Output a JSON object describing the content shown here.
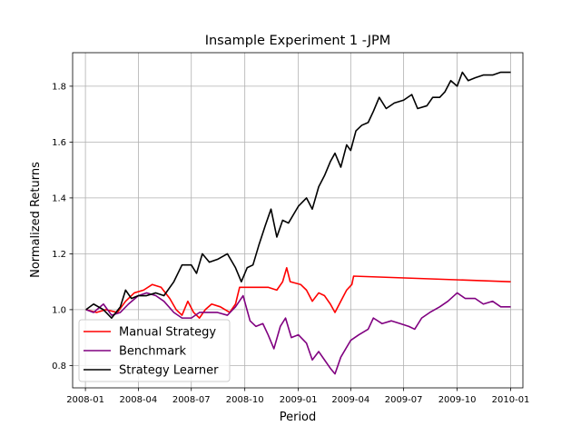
{
  "chart_data": {
    "type": "line",
    "title": "Insample Experiment 1 -JPM",
    "xlabel": "Period",
    "ylabel": "Normalized Returns",
    "xlim": [
      "2007-12-10",
      "2010-01-22"
    ],
    "ylim": [
      0.72,
      1.92
    ],
    "x_ticks": [
      "2008-01-01",
      "2008-04-01",
      "2008-07-01",
      "2008-10-01",
      "2009-01-01",
      "2009-04-01",
      "2009-07-01",
      "2009-10-01",
      "2010-01-01"
    ],
    "x_tick_labels": [
      "2008-01",
      "2008-04",
      "2008-07",
      "2008-10",
      "2009-01",
      "2009-04",
      "2009-07",
      "2009-10",
      "2010-01"
    ],
    "y_ticks": [
      0.8,
      1.0,
      1.2,
      1.4,
      1.6,
      1.8
    ],
    "y_tick_labels": [
      "0.8",
      "1.0",
      "1.2",
      "1.4",
      "1.6",
      "1.8"
    ],
    "grid": true,
    "legend_position": "lower-left",
    "series": [
      {
        "name": "Manual Strategy",
        "color": "#ff0000",
        "points": [
          [
            "2008-01-02",
            1.0
          ],
          [
            "2008-01-20",
            0.99
          ],
          [
            "2008-02-05",
            1.0
          ],
          [
            "2008-02-25",
            0.99
          ],
          [
            "2008-03-10",
            1.03
          ],
          [
            "2008-03-25",
            1.06
          ],
          [
            "2008-04-10",
            1.07
          ],
          [
            "2008-04-25",
            1.09
          ],
          [
            "2008-05-10",
            1.08
          ],
          [
            "2008-05-25",
            1.04
          ],
          [
            "2008-06-05",
            1.0
          ],
          [
            "2008-06-15",
            0.98
          ],
          [
            "2008-06-25",
            1.03
          ],
          [
            "2008-07-05",
            0.99
          ],
          [
            "2008-07-15",
            0.97
          ],
          [
            "2008-07-25",
            1.0
          ],
          [
            "2008-08-05",
            1.02
          ],
          [
            "2008-08-20",
            1.01
          ],
          [
            "2008-09-05",
            0.99
          ],
          [
            "2008-09-15",
            1.02
          ],
          [
            "2008-09-22",
            1.08
          ],
          [
            "2008-10-10",
            1.08
          ],
          [
            "2008-11-10",
            1.08
          ],
          [
            "2008-11-25",
            1.07
          ],
          [
            "2008-12-05",
            1.1
          ],
          [
            "2008-12-12",
            1.15
          ],
          [
            "2008-12-18",
            1.1
          ],
          [
            "2009-01-05",
            1.09
          ],
          [
            "2009-01-15",
            1.07
          ],
          [
            "2009-01-25",
            1.03
          ],
          [
            "2009-02-05",
            1.06
          ],
          [
            "2009-02-15",
            1.05
          ],
          [
            "2009-02-25",
            1.02
          ],
          [
            "2009-03-05",
            0.99
          ],
          [
            "2009-03-15",
            1.03
          ],
          [
            "2009-03-25",
            1.07
          ],
          [
            "2009-04-03",
            1.09
          ],
          [
            "2009-04-06",
            1.12
          ],
          [
            "2010-01-01",
            1.1
          ]
        ]
      },
      {
        "name": "Benchmark",
        "color": "#800080",
        "points": [
          [
            "2008-01-02",
            1.0
          ],
          [
            "2008-01-15",
            0.99
          ],
          [
            "2008-02-01",
            1.02
          ],
          [
            "2008-02-15",
            0.98
          ],
          [
            "2008-03-01",
            0.99
          ],
          [
            "2008-03-15",
            1.02
          ],
          [
            "2008-04-01",
            1.05
          ],
          [
            "2008-04-15",
            1.06
          ],
          [
            "2008-05-01",
            1.05
          ],
          [
            "2008-05-15",
            1.03
          ],
          [
            "2008-06-01",
            0.99
          ],
          [
            "2008-06-15",
            0.97
          ],
          [
            "2008-07-01",
            0.97
          ],
          [
            "2008-07-15",
            0.99
          ],
          [
            "2008-08-01",
            0.99
          ],
          [
            "2008-08-15",
            0.99
          ],
          [
            "2008-09-01",
            0.98
          ],
          [
            "2008-09-15",
            1.01
          ],
          [
            "2008-09-28",
            1.05
          ],
          [
            "2008-10-10",
            0.96
          ],
          [
            "2008-10-20",
            0.94
          ],
          [
            "2008-11-01",
            0.95
          ],
          [
            "2008-11-10",
            0.91
          ],
          [
            "2008-11-20",
            0.86
          ],
          [
            "2008-12-01",
            0.94
          ],
          [
            "2008-12-10",
            0.97
          ],
          [
            "2008-12-20",
            0.9
          ],
          [
            "2009-01-01",
            0.91
          ],
          [
            "2009-01-15",
            0.88
          ],
          [
            "2009-01-25",
            0.82
          ],
          [
            "2009-02-05",
            0.85
          ],
          [
            "2009-02-15",
            0.82
          ],
          [
            "2009-02-25",
            0.79
          ],
          [
            "2009-03-05",
            0.77
          ],
          [
            "2009-03-15",
            0.83
          ],
          [
            "2009-04-01",
            0.89
          ],
          [
            "2009-04-15",
            0.91
          ],
          [
            "2009-05-01",
            0.93
          ],
          [
            "2009-05-10",
            0.97
          ],
          [
            "2009-05-25",
            0.95
          ],
          [
            "2009-06-10",
            0.96
          ],
          [
            "2009-06-25",
            0.95
          ],
          [
            "2009-07-10",
            0.94
          ],
          [
            "2009-07-20",
            0.93
          ],
          [
            "2009-08-01",
            0.97
          ],
          [
            "2009-08-15",
            0.99
          ],
          [
            "2009-09-01",
            1.01
          ],
          [
            "2009-09-15",
            1.03
          ],
          [
            "2009-10-01",
            1.06
          ],
          [
            "2009-10-15",
            1.04
          ],
          [
            "2009-11-01",
            1.04
          ],
          [
            "2009-11-15",
            1.02
          ],
          [
            "2009-12-01",
            1.03
          ],
          [
            "2009-12-15",
            1.01
          ],
          [
            "2010-01-01",
            1.01
          ]
        ]
      },
      {
        "name": "Strategy Learner",
        "color": "#000000",
        "points": [
          [
            "2008-01-02",
            1.0
          ],
          [
            "2008-01-15",
            1.02
          ],
          [
            "2008-02-01",
            1.0
          ],
          [
            "2008-02-15",
            0.97
          ],
          [
            "2008-03-01",
            1.01
          ],
          [
            "2008-03-10",
            1.07
          ],
          [
            "2008-03-20",
            1.04
          ],
          [
            "2008-04-01",
            1.05
          ],
          [
            "2008-04-15",
            1.05
          ],
          [
            "2008-05-01",
            1.06
          ],
          [
            "2008-05-15",
            1.05
          ],
          [
            "2008-06-01",
            1.1
          ],
          [
            "2008-06-15",
            1.16
          ],
          [
            "2008-07-01",
            1.16
          ],
          [
            "2008-07-10",
            1.13
          ],
          [
            "2008-07-20",
            1.2
          ],
          [
            "2008-08-01",
            1.17
          ],
          [
            "2008-08-15",
            1.18
          ],
          [
            "2008-09-01",
            1.2
          ],
          [
            "2008-09-15",
            1.15
          ],
          [
            "2008-09-25",
            1.1
          ],
          [
            "2008-10-05",
            1.15
          ],
          [
            "2008-10-15",
            1.16
          ],
          [
            "2008-10-25",
            1.23
          ],
          [
            "2008-11-05",
            1.3
          ],
          [
            "2008-11-15",
            1.36
          ],
          [
            "2008-11-25",
            1.26
          ],
          [
            "2008-12-05",
            1.32
          ],
          [
            "2008-12-15",
            1.31
          ],
          [
            "2009-01-01",
            1.37
          ],
          [
            "2009-01-15",
            1.4
          ],
          [
            "2009-01-25",
            1.36
          ],
          [
            "2009-02-05",
            1.44
          ],
          [
            "2009-02-15",
            1.48
          ],
          [
            "2009-02-25",
            1.53
          ],
          [
            "2009-03-05",
            1.56
          ],
          [
            "2009-03-15",
            1.51
          ],
          [
            "2009-03-25",
            1.59
          ],
          [
            "2009-04-01",
            1.57
          ],
          [
            "2009-04-10",
            1.64
          ],
          [
            "2009-04-20",
            1.66
          ],
          [
            "2009-05-01",
            1.67
          ],
          [
            "2009-05-10",
            1.71
          ],
          [
            "2009-05-20",
            1.76
          ],
          [
            "2009-06-01",
            1.72
          ],
          [
            "2009-06-15",
            1.74
          ],
          [
            "2009-07-01",
            1.75
          ],
          [
            "2009-07-15",
            1.77
          ],
          [
            "2009-07-25",
            1.72
          ],
          [
            "2009-08-10",
            1.73
          ],
          [
            "2009-08-20",
            1.76
          ],
          [
            "2009-09-01",
            1.76
          ],
          [
            "2009-09-10",
            1.78
          ],
          [
            "2009-09-20",
            1.82
          ],
          [
            "2009-10-01",
            1.8
          ],
          [
            "2009-10-10",
            1.85
          ],
          [
            "2009-10-20",
            1.82
          ],
          [
            "2009-11-01",
            1.83
          ],
          [
            "2009-11-15",
            1.84
          ],
          [
            "2009-12-01",
            1.84
          ],
          [
            "2009-12-15",
            1.85
          ],
          [
            "2010-01-01",
            1.85
          ]
        ]
      }
    ]
  }
}
